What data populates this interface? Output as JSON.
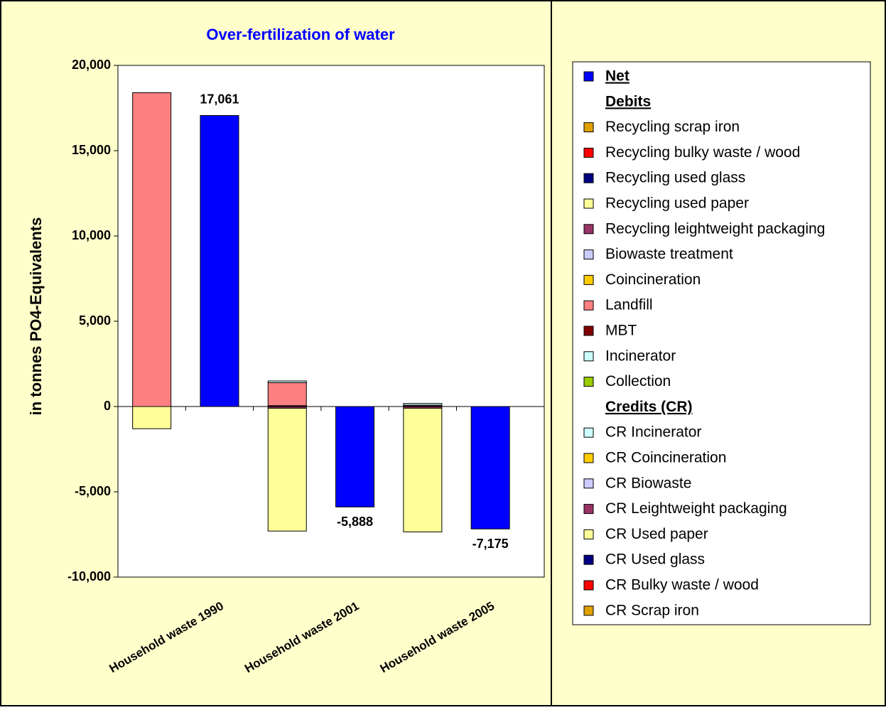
{
  "chart_data": {
    "type": "bar",
    "stacked": true,
    "title": "Over-fertilization of water",
    "y_label": "in tonnes PO4-Equivalents",
    "categories": [
      "Household waste 1990",
      null,
      "Household waste 2001",
      null,
      "Household waste 2005",
      null
    ],
    "ylim": [
      -10000,
      20000
    ],
    "yticks": [
      {
        "value": -10000,
        "label": "-10,000"
      },
      {
        "value": -5000,
        "label": "-5,000"
      },
      0,
      {
        "value": 5000,
        "label": "5,000"
      },
      {
        "value": 10000,
        "label": "10,000"
      },
      {
        "value": 15000,
        "label": "15,000"
      },
      {
        "value": 20000,
        "label": "20,000"
      }
    ],
    "grid": false,
    "legend_position": "right",
    "group_labels": {
      "debit": "Debits",
      "credit": "Credits (CR)"
    },
    "series": [
      {
        "name": "Net",
        "group": "net",
        "color": "#0000ff",
        "values": [
          null,
          17061,
          null,
          -5888,
          null,
          -7175
        ],
        "value_labels": [
          null,
          "17,061",
          null,
          "-5,888",
          null,
          "-7,175"
        ]
      },
      {
        "name": "Recycling scrap iron",
        "group": "debit",
        "color": "#e0a000",
        "values": [
          null,
          null,
          null,
          null,
          null,
          null
        ]
      },
      {
        "name": "Recycling bulky waste / wood",
        "group": "debit",
        "color": "#ff0000",
        "values": [
          null,
          null,
          null,
          null,
          null,
          null
        ]
      },
      {
        "name": "Recycling used glass",
        "group": "debit",
        "color": "#000080",
        "values": [
          null,
          null,
          50,
          null,
          30,
          null
        ]
      },
      {
        "name": "Recycling used paper",
        "group": "debit",
        "color": "#ffff99",
        "values": [
          null,
          null,
          null,
          null,
          null,
          null
        ]
      },
      {
        "name": "Recycling leightweight packaging",
        "group": "debit",
        "color": "#993366",
        "values": [
          null,
          null,
          null,
          null,
          null,
          null
        ]
      },
      {
        "name": "Biowaste treatment",
        "group": "debit",
        "color": "#ccccff",
        "values": [
          null,
          null,
          null,
          null,
          null,
          null
        ]
      },
      {
        "name": "Coincineration",
        "group": "debit",
        "color": "#ffcc00",
        "values": [
          null,
          null,
          null,
          null,
          null,
          null
        ]
      },
      {
        "name": "Landfill",
        "group": "debit",
        "color": "#ff8080",
        "values": [
          18400,
          null,
          1350,
          null,
          50,
          null
        ]
      },
      {
        "name": "MBT",
        "group": "debit",
        "color": "#800000",
        "values": [
          null,
          null,
          null,
          null,
          null,
          null
        ]
      },
      {
        "name": "Incinerator",
        "group": "debit",
        "color": "#ccffff",
        "values": [
          null,
          null,
          100,
          null,
          100,
          null
        ]
      },
      {
        "name": "Collection",
        "group": "debit",
        "color": "#99cc00",
        "values": [
          null,
          null,
          null,
          null,
          null,
          null
        ]
      },
      {
        "name": "CR Incinerator",
        "group": "credit",
        "color": "#ccffff",
        "values": [
          null,
          null,
          null,
          null,
          null,
          null
        ]
      },
      {
        "name": "CR Coincineration",
        "group": "credit",
        "color": "#ffcc00",
        "values": [
          null,
          null,
          null,
          null,
          null,
          null
        ]
      },
      {
        "name": "CR Biowaste",
        "group": "credit",
        "color": "#ccccff",
        "values": [
          null,
          null,
          null,
          null,
          null,
          null
        ]
      },
      {
        "name": "CR Leightweight packaging",
        "group": "credit",
        "color": "#993366",
        "values": [
          null,
          null,
          -100,
          null,
          -100,
          null
        ]
      },
      {
        "name": "CR Used paper",
        "group": "credit",
        "color": "#ffff99",
        "values": [
          -1300,
          null,
          -7200,
          null,
          -7250,
          null
        ]
      },
      {
        "name": "CR Used glass",
        "group": "credit",
        "color": "#000080",
        "values": [
          null,
          null,
          null,
          null,
          null,
          null
        ]
      },
      {
        "name": "CR Bulky waste / wood",
        "group": "credit",
        "color": "#ff0000",
        "values": [
          null,
          null,
          null,
          null,
          null,
          null
        ]
      },
      {
        "name": "CR Scrap iron",
        "group": "credit",
        "color": "#e0a000",
        "values": [
          null,
          null,
          null,
          null,
          null,
          null
        ]
      }
    ]
  }
}
